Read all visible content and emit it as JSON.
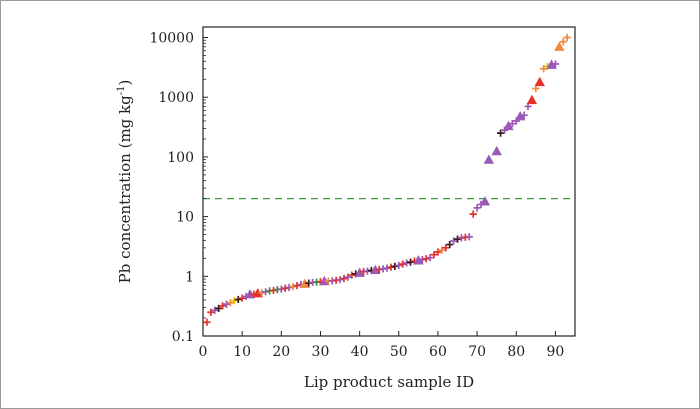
{
  "chart_data": {
    "type": "scatter",
    "xlabel": "Lip product sample ID",
    "ylabel_main": "Pb concentration (mg kg",
    "ylabel_sup": "-1",
    "ylabel_close": ")",
    "xlim": [
      0,
      95
    ],
    "ylim": [
      0.1,
      15000
    ],
    "yscale": "log",
    "x_ticks": [
      0,
      10,
      20,
      30,
      40,
      50,
      60,
      70,
      80,
      90
    ],
    "y_ticks": [
      {
        "value": 0.1,
        "label": "0.1"
      },
      {
        "value": 1,
        "label": "1"
      },
      {
        "value": 10,
        "label": "10"
      },
      {
        "value": 100,
        "label": "100"
      },
      {
        "value": 1000,
        "label": "1000"
      },
      {
        "value": 10000,
        "label": "10000"
      }
    ],
    "threshold": {
      "y": 20,
      "color": "#3a9a3a",
      "style": "dashed"
    },
    "colors": {
      "red": "#e8302a",
      "purple": "#9b59b6",
      "orange": "#f08a3c",
      "dark": "#3a1a1a",
      "green": "#3f8f3f",
      "yellow": "#e6c200",
      "axis": "#222222"
    },
    "points": [
      {
        "x": 1,
        "y": 0.17,
        "m": "plus",
        "c": "red"
      },
      {
        "x": 2,
        "y": 0.25,
        "m": "plus",
        "c": "red"
      },
      {
        "x": 3,
        "y": 0.27,
        "m": "plus",
        "c": "purple"
      },
      {
        "x": 4,
        "y": 0.29,
        "m": "plus",
        "c": "dark"
      },
      {
        "x": 5,
        "y": 0.32,
        "m": "plus",
        "c": "red"
      },
      {
        "x": 6,
        "y": 0.34,
        "m": "plus",
        "c": "purple"
      },
      {
        "x": 7,
        "y": 0.36,
        "m": "plus",
        "c": "orange"
      },
      {
        "x": 8,
        "y": 0.39,
        "m": "plus",
        "c": "yellow"
      },
      {
        "x": 9,
        "y": 0.41,
        "m": "plus",
        "c": "dark"
      },
      {
        "x": 10,
        "y": 0.43,
        "m": "plus",
        "c": "red"
      },
      {
        "x": 11,
        "y": 0.46,
        "m": "plus",
        "c": "purple"
      },
      {
        "x": 12,
        "y": 0.5,
        "m": "tri",
        "c": "purple"
      },
      {
        "x": 13,
        "y": 0.5,
        "m": "plus",
        "c": "red"
      },
      {
        "x": 14,
        "y": 0.52,
        "m": "tri",
        "c": "red"
      },
      {
        "x": 15,
        "y": 0.53,
        "m": "plus",
        "c": "orange"
      },
      {
        "x": 16,
        "y": 0.55,
        "m": "plus",
        "c": "purple"
      },
      {
        "x": 17,
        "y": 0.57,
        "m": "plus",
        "c": "green"
      },
      {
        "x": 18,
        "y": 0.58,
        "m": "plus",
        "c": "red"
      },
      {
        "x": 19,
        "y": 0.6,
        "m": "plus",
        "c": "green"
      },
      {
        "x": 20,
        "y": 0.61,
        "m": "plus",
        "c": "purple"
      },
      {
        "x": 21,
        "y": 0.63,
        "m": "plus",
        "c": "red"
      },
      {
        "x": 22,
        "y": 0.65,
        "m": "plus",
        "c": "purple"
      },
      {
        "x": 23,
        "y": 0.67,
        "m": "plus",
        "c": "orange"
      },
      {
        "x": 24,
        "y": 0.7,
        "m": "plus",
        "c": "red"
      },
      {
        "x": 25,
        "y": 0.73,
        "m": "plus",
        "c": "purple"
      },
      {
        "x": 26,
        "y": 0.75,
        "m": "tri",
        "c": "orange"
      },
      {
        "x": 27,
        "y": 0.77,
        "m": "plus",
        "c": "dark"
      },
      {
        "x": 28,
        "y": 0.79,
        "m": "plus",
        "c": "purple"
      },
      {
        "x": 29,
        "y": 0.8,
        "m": "plus",
        "c": "green"
      },
      {
        "x": 30,
        "y": 0.81,
        "m": "plus",
        "c": "red"
      },
      {
        "x": 31,
        "y": 0.83,
        "m": "tri",
        "c": "purple"
      },
      {
        "x": 32,
        "y": 0.83,
        "m": "plus",
        "c": "orange"
      },
      {
        "x": 33,
        "y": 0.84,
        "m": "plus",
        "c": "purple"
      },
      {
        "x": 34,
        "y": 0.86,
        "m": "plus",
        "c": "red"
      },
      {
        "x": 35,
        "y": 0.88,
        "m": "plus",
        "c": "purple"
      },
      {
        "x": 36,
        "y": 0.92,
        "m": "plus",
        "c": "red"
      },
      {
        "x": 37,
        "y": 0.97,
        "m": "plus",
        "c": "purple"
      },
      {
        "x": 38,
        "y": 1.05,
        "m": "plus",
        "c": "red"
      },
      {
        "x": 39,
        "y": 1.1,
        "m": "plus",
        "c": "dark"
      },
      {
        "x": 40,
        "y": 1.15,
        "m": "tri",
        "c": "purple"
      },
      {
        "x": 41,
        "y": 1.2,
        "m": "plus",
        "c": "red"
      },
      {
        "x": 42,
        "y": 1.22,
        "m": "plus",
        "c": "purple"
      },
      {
        "x": 43,
        "y": 1.25,
        "m": "plus",
        "c": "dark"
      },
      {
        "x": 44,
        "y": 1.28,
        "m": "tri",
        "c": "purple"
      },
      {
        "x": 45,
        "y": 1.3,
        "m": "plus",
        "c": "red"
      },
      {
        "x": 46,
        "y": 1.33,
        "m": "plus",
        "c": "purple"
      },
      {
        "x": 47,
        "y": 1.37,
        "m": "plus",
        "c": "purple"
      },
      {
        "x": 48,
        "y": 1.42,
        "m": "plus",
        "c": "red"
      },
      {
        "x": 49,
        "y": 1.47,
        "m": "plus",
        "c": "dark"
      },
      {
        "x": 50,
        "y": 1.52,
        "m": "plus",
        "c": "purple"
      },
      {
        "x": 51,
        "y": 1.6,
        "m": "plus",
        "c": "red"
      },
      {
        "x": 52,
        "y": 1.67,
        "m": "plus",
        "c": "purple"
      },
      {
        "x": 53,
        "y": 1.73,
        "m": "plus",
        "c": "dark"
      },
      {
        "x": 54,
        "y": 1.8,
        "m": "plus",
        "c": "red"
      },
      {
        "x": 55,
        "y": 1.85,
        "m": "tri",
        "c": "purple"
      },
      {
        "x": 56,
        "y": 1.9,
        "m": "plus",
        "c": "purple"
      },
      {
        "x": 57,
        "y": 1.97,
        "m": "plus",
        "c": "red"
      },
      {
        "x": 58,
        "y": 2.05,
        "m": "plus",
        "c": "purple"
      },
      {
        "x": 59,
        "y": 2.3,
        "m": "plus",
        "c": "red"
      },
      {
        "x": 60,
        "y": 2.55,
        "m": "plus",
        "c": "red"
      },
      {
        "x": 61,
        "y": 2.75,
        "m": "plus",
        "c": "orange"
      },
      {
        "x": 62,
        "y": 3.0,
        "m": "plus",
        "c": "red"
      },
      {
        "x": 63,
        "y": 3.4,
        "m": "plus",
        "c": "dark"
      },
      {
        "x": 64,
        "y": 3.9,
        "m": "plus",
        "c": "purple"
      },
      {
        "x": 65,
        "y": 4.2,
        "m": "plus",
        "c": "dark"
      },
      {
        "x": 66,
        "y": 4.4,
        "m": "plus",
        "c": "purple"
      },
      {
        "x": 67,
        "y": 4.5,
        "m": "plus",
        "c": "red"
      },
      {
        "x": 68,
        "y": 4.6,
        "m": "plus",
        "c": "purple"
      },
      {
        "x": 69,
        "y": 11,
        "m": "plus",
        "c": "red"
      },
      {
        "x": 70,
        "y": 14,
        "m": "plus",
        "c": "purple"
      },
      {
        "x": 71,
        "y": 16,
        "m": "plus",
        "c": "purple"
      },
      {
        "x": 72,
        "y": 18,
        "m": "tri",
        "c": "purple"
      },
      {
        "x": 73,
        "y": 90,
        "m": "tri",
        "c": "purple"
      },
      {
        "x": 75,
        "y": 125,
        "m": "tri",
        "c": "purple"
      },
      {
        "x": 76,
        "y": 250,
        "m": "plus",
        "c": "dark"
      },
      {
        "x": 77,
        "y": 280,
        "m": "plus",
        "c": "purple"
      },
      {
        "x": 78,
        "y": 330,
        "m": "tri",
        "c": "purple"
      },
      {
        "x": 79,
        "y": 360,
        "m": "plus",
        "c": "purple"
      },
      {
        "x": 80,
        "y": 400,
        "m": "plus",
        "c": "purple"
      },
      {
        "x": 81,
        "y": 480,
        "m": "tri",
        "c": "purple"
      },
      {
        "x": 82,
        "y": 500,
        "m": "plus",
        "c": "purple"
      },
      {
        "x": 83,
        "y": 700,
        "m": "plus",
        "c": "purple"
      },
      {
        "x": 84,
        "y": 900,
        "m": "tri",
        "c": "red"
      },
      {
        "x": 85,
        "y": 1400,
        "m": "plus",
        "c": "orange"
      },
      {
        "x": 86,
        "y": 1800,
        "m": "tri",
        "c": "red"
      },
      {
        "x": 87,
        "y": 3000,
        "m": "plus",
        "c": "orange"
      },
      {
        "x": 88,
        "y": 3300,
        "m": "plus",
        "c": "yellow"
      },
      {
        "x": 89,
        "y": 3500,
        "m": "tri",
        "c": "purple"
      },
      {
        "x": 90,
        "y": 3600,
        "m": "plus",
        "c": "purple"
      },
      {
        "x": 91,
        "y": 7000,
        "m": "tri",
        "c": "orange"
      },
      {
        "x": 92,
        "y": 8500,
        "m": "plus",
        "c": "orange"
      },
      {
        "x": 93,
        "y": 10000,
        "m": "plus",
        "c": "orange"
      }
    ]
  }
}
